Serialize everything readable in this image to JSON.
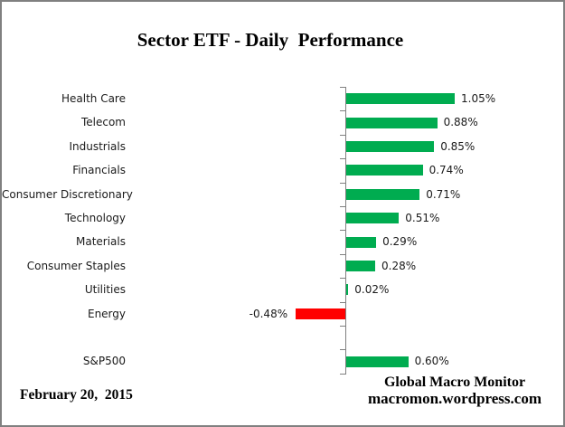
{
  "title": "Sector ETF - Daily  Performance",
  "date_label": "February 20,  2015",
  "footer": {
    "line1": "Global Macro Monitor",
    "line2": "macromon.wordpress.com"
  },
  "colors": {
    "positive_bar": "#00AC50",
    "negative_bar": "#FF0000",
    "axis": "#808080",
    "page_border": "#808080",
    "text": "#1a1a1a"
  },
  "chart_data": {
    "type": "bar",
    "orientation": "horizontal",
    "title": "Sector ETF - Daily Performance",
    "xlabel": "",
    "ylabel": "",
    "value_unit": "percent",
    "xlim": [
      -0.6,
      1.2
    ],
    "grid": false,
    "legend": false,
    "rows": [
      {
        "label": "Health Care",
        "value": 1.05,
        "display": "1.05%"
      },
      {
        "label": "Telecom",
        "value": 0.88,
        "display": "0.88%"
      },
      {
        "label": "Industrials",
        "value": 0.85,
        "display": "0.85%"
      },
      {
        "label": "Financials",
        "value": 0.74,
        "display": "0.74%"
      },
      {
        "label": "Consumer Discretionary",
        "value": 0.71,
        "display": "0.71%"
      },
      {
        "label": "Technology",
        "value": 0.51,
        "display": "0.51%"
      },
      {
        "label": "Materials",
        "value": 0.29,
        "display": "0.29%"
      },
      {
        "label": "Consumer Staples",
        "value": 0.28,
        "display": "0.28%"
      },
      {
        "label": "Utilities",
        "value": 0.02,
        "display": "0.02%"
      },
      {
        "label": "Energy",
        "value": -0.48,
        "display": "-0.48%"
      },
      {
        "label": "",
        "value": null,
        "display": ""
      },
      {
        "label": "S&P500",
        "value": 0.6,
        "display": "0.60%"
      }
    ]
  }
}
